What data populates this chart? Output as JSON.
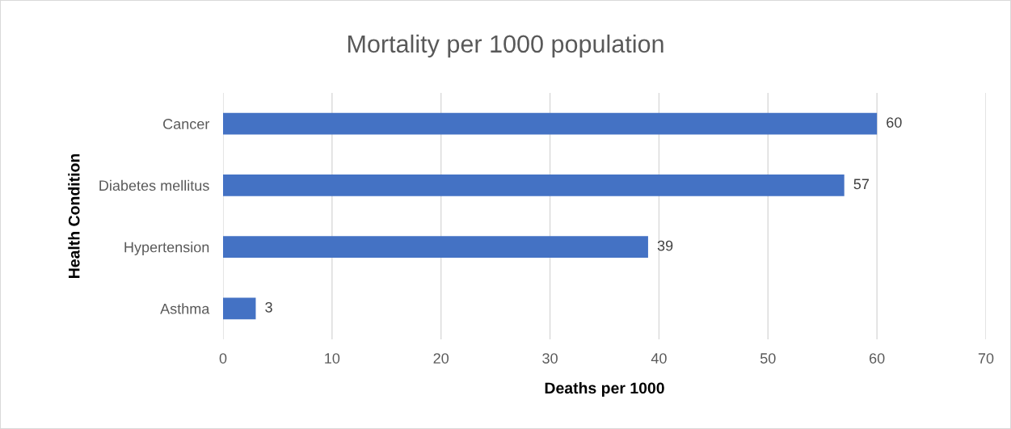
{
  "chart_data": {
    "type": "bar",
    "orientation": "horizontal",
    "title": "Mortality per 1000 population",
    "xlabel": "Deaths per 1000",
    "ylabel": "Health Condition",
    "categories": [
      "Cancer",
      "Diabetes mellitus",
      "Hypertension",
      "Asthma"
    ],
    "values": [
      60,
      57,
      39,
      3
    ],
    "color": "#4472c4",
    "xlim": [
      0,
      70
    ],
    "xticks": [
      0,
      10,
      20,
      30,
      40,
      50,
      60,
      70
    ],
    "grid": "x",
    "data_labels": true,
    "legend": false
  }
}
